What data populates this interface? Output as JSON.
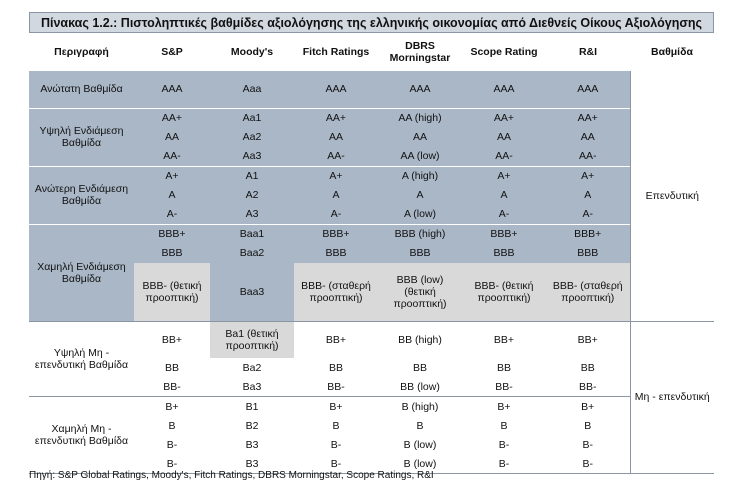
{
  "title": "Πίνακας 1.2.: Πιστοληπτικές βαθμίδες αξιολόγησης της ελληνικής οικονομίας από Διεθνείς Οίκους Αξιολόγησης",
  "headers": [
    "Περιγραφή",
    "S&P",
    "Moody's",
    "Fitch Ratings",
    "DBRS Morningstar",
    "Scope Rating",
    "R&I",
    "Βαθμίδα"
  ],
  "categories": {
    "investment": "Επενδυτική",
    "non_investment": "Μη - επενδυτική"
  },
  "groups": [
    {
      "desc": "Ανώτατη Βαθμίδα",
      "rows": [
        [
          "AAA",
          "Aaa",
          "AAA",
          "AAA",
          "AAA",
          "AAA"
        ]
      ]
    },
    {
      "desc": "Υψηλή Ενδιάμεση Βαθμίδα",
      "rows": [
        [
          "AA+",
          "Aa1",
          "AA+",
          "AA (high)",
          "AA+",
          "AA+"
        ],
        [
          "AA",
          "Aa2",
          "AA",
          "AA",
          "AA",
          "AA"
        ],
        [
          "AA-",
          "Aa3",
          "AA-",
          "AA (low)",
          "AA-",
          "AA-"
        ]
      ]
    },
    {
      "desc": "Ανώτερη Ενδιάμεση Βαθμίδα",
      "rows": [
        [
          "A+",
          "A1",
          "A+",
          "A (high)",
          "A+",
          "A+"
        ],
        [
          "A",
          "A2",
          "A",
          "A",
          "A",
          "A"
        ],
        [
          "A-",
          "A3",
          "A-",
          "A (low)",
          "A-",
          "A-"
        ]
      ]
    },
    {
      "desc": "Χαμηλή Ενδιάμεση Βαθμίδα",
      "rows": [
        [
          "BBB+",
          "Baa1",
          "BBB+",
          "BBB (high)",
          "BBB+",
          "BBB+"
        ],
        [
          "BBB",
          "Baa2",
          "BBB",
          "BBB",
          "BBB",
          "BBB"
        ],
        [
          "BBB- (θετική προοπτική)",
          "Baa3",
          "BBB- (σταθερή προοπτική)",
          "BBB (low) (θετική προοπτική)",
          "BBB- (θετική προοπτική)",
          "BBB- (σταθερή προοπτική)"
        ]
      ]
    },
    {
      "desc": "Υψηλή Μη - επενδυτική Βαθμίδα",
      "rows": [
        [
          "BB+",
          "Ba1 (θετική προοπτική)",
          "BB+",
          "BB (high)",
          "BB+",
          "BB+"
        ],
        [
          "BB",
          "Ba2",
          "BB",
          "BB",
          "BB",
          "BB"
        ],
        [
          "BB-",
          "Ba3",
          "BB-",
          "BB (low)",
          "BB-",
          "BB-"
        ]
      ]
    },
    {
      "desc": "Χαμηλή Μη - επενδυτική Βαθμίδα",
      "rows": [
        [
          "B+",
          "B1",
          "B+",
          "B (high)",
          "B+",
          "B+"
        ],
        [
          "B",
          "B2",
          "B",
          "B",
          "B",
          "B"
        ],
        [
          "B-",
          "B3",
          "B-",
          "B (low)",
          "B-",
          "B-"
        ],
        [
          "B-",
          "B3",
          "B-",
          "B (low)",
          "B-",
          "B-"
        ]
      ]
    }
  ],
  "source": "Πηγή: S&P Global Ratings, Moody's, Fitch Ratings, DBRS Morningstar, Scope Ratings, R&I"
}
